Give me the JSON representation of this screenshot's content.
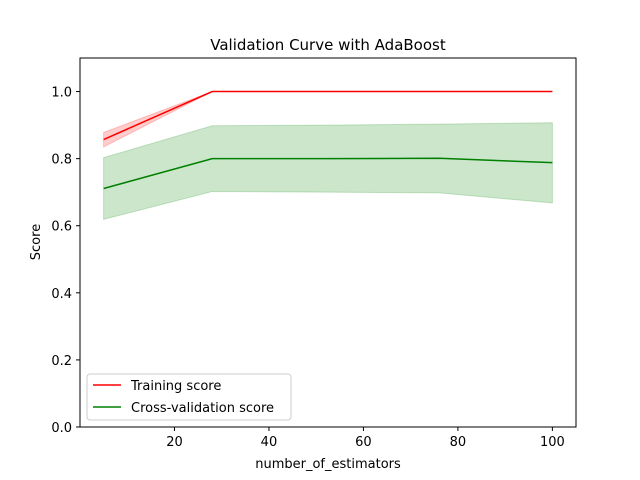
{
  "chart_data": {
    "type": "line",
    "title": "Validation Curve with AdaBoost",
    "xlabel": "number_of_estimators",
    "ylabel": "Score",
    "xlim": [
      0,
      105
    ],
    "ylim": [
      0.0,
      1.1
    ],
    "xticks": [
      20,
      40,
      60,
      80,
      100
    ],
    "xtick_labels": [
      "20",
      "40",
      "60",
      "80",
      "100"
    ],
    "yticks": [
      0.0,
      0.2,
      0.4,
      0.6,
      0.8,
      1.0
    ],
    "ytick_labels": [
      "0.0",
      "0.2",
      "0.4",
      "0.6",
      "0.8",
      "1.0"
    ],
    "grid": false,
    "legend_position": "lower-left",
    "x": [
      5,
      28,
      52,
      76,
      100
    ],
    "series": [
      {
        "name": "Training score",
        "color": "#ff0000",
        "values": [
          0.857,
          1.0,
          1.0,
          1.0,
          1.0
        ],
        "band_lower": [
          0.835,
          1.0,
          1.0,
          1.0,
          1.0
        ],
        "band_upper": [
          0.878,
          1.0,
          1.0,
          1.0,
          1.0
        ]
      },
      {
        "name": "Cross-validation score",
        "color": "#008000",
        "values": [
          0.711,
          0.8,
          0.8,
          0.801,
          0.788
        ],
        "band_lower": [
          0.619,
          0.702,
          0.7,
          0.698,
          0.668
        ],
        "band_upper": [
          0.803,
          0.898,
          0.9,
          0.903,
          0.907
        ]
      }
    ]
  }
}
